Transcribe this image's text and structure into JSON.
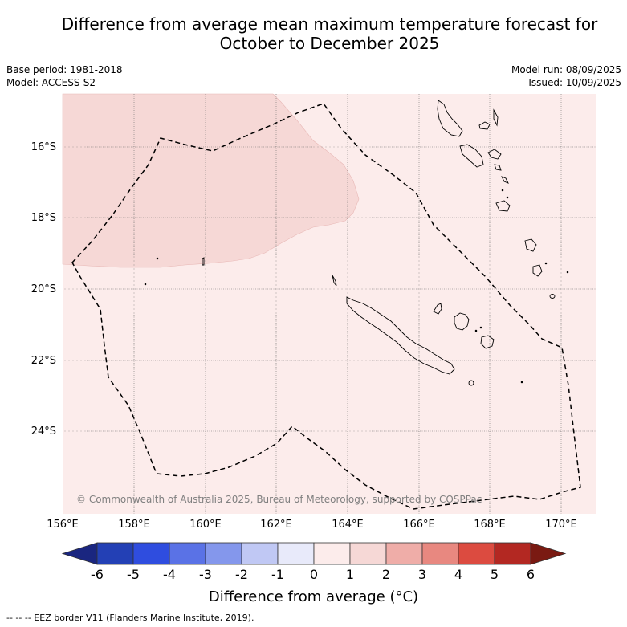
{
  "title_line1": "Difference from average mean maximum temperature forecast for",
  "title_line2": "October to December 2025",
  "meta": {
    "base_period": "Base period: 1981-2018",
    "model": "Model: ACCESS-S2",
    "model_run": "Model run: 08/09/2025",
    "issued": "Issued: 10/09/2025"
  },
  "map": {
    "lat_labels": [
      "16°S",
      "18°S",
      "20°S",
      "22°S",
      "24°S"
    ],
    "lon_labels": [
      "156°E",
      "158°E",
      "160°E",
      "162°E",
      "164°E",
      "166°E",
      "168°E",
      "170°E"
    ],
    "copyright": "© Commonwealth of Australia 2025, Bureau of Meteorology, supported by COSPPac",
    "fill_colors": {
      "anomaly_0_to_1": "#fceceb",
      "anomaly_1_to_2": "#f6d8d6"
    }
  },
  "colorbar": {
    "tick_labels": [
      "-6",
      "-5",
      "-4",
      "-3",
      "-2",
      "-1",
      "0",
      "1",
      "2",
      "3",
      "4",
      "5",
      "6"
    ],
    "colors": [
      "#1a2680",
      "#2340b5",
      "#2f4ddf",
      "#5a72e6",
      "#8497ec",
      "#c0c8f4",
      "#e8eafa",
      "#fceceb",
      "#f6d8d6",
      "#efada8",
      "#e88880",
      "#dc4b40",
      "#b32822",
      "#7a1a12"
    ],
    "label": "Difference from average (°C)"
  },
  "footnote": "--  --  -- EEZ border V11 (Flanders Marine Institute, 2019)."
}
